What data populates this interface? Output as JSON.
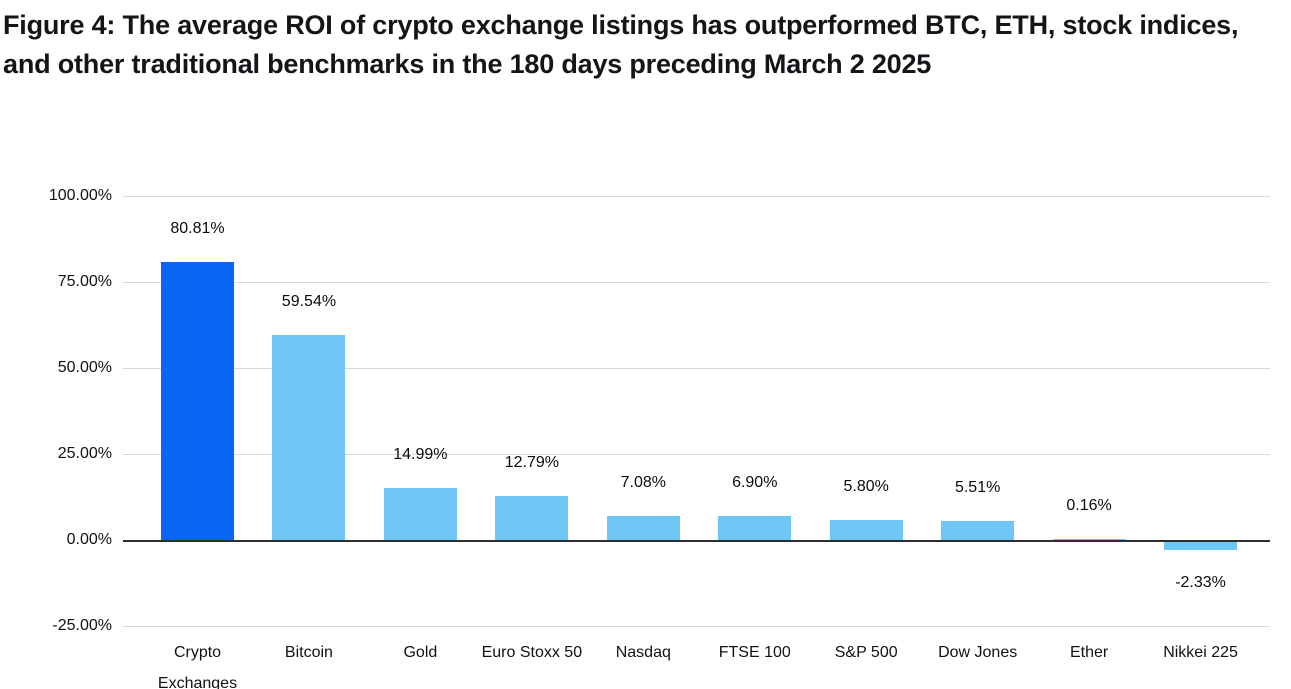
{
  "figure": {
    "title": "Figure 4: The average ROI of crypto exchange listings has outperformed BTC, ETH, stock indices, and other traditional benchmarks in the 180 days preceding March 2 2025"
  },
  "chart_data": {
    "type": "bar",
    "categories": [
      "Crypto Exchanges",
      "Bitcoin",
      "Gold",
      "Euro Stoxx 50",
      "Nasdaq",
      "FTSE 100",
      "S&P 500",
      "Dow Jones",
      "Ether",
      "Nikkei 225"
    ],
    "values": [
      80.81,
      59.54,
      14.99,
      12.79,
      7.08,
      6.9,
      5.8,
      5.51,
      0.16,
      -2.33
    ],
    "data_labels": [
      "80.81%",
      "59.54%",
      "14.99%",
      "12.79%",
      "7.08%",
      "6.90%",
      "5.80%",
      "5.51%",
      "0.16%",
      "-2.33%"
    ],
    "y_tick_labels": [
      "100.00%",
      "75.00%",
      "50.00%",
      "25.00%",
      "0.00%",
      "-25.00%"
    ],
    "y_tick_values": [
      100,
      75,
      50,
      25,
      0,
      -25
    ],
    "ylim": [
      -25,
      100
    ],
    "grid": true,
    "legend_position": "none",
    "xlabel": "",
    "ylabel": "",
    "highlight_index": 0,
    "colors": {
      "highlight_bar": "#0a67f5",
      "default_bar": "#6fc7f7",
      "gridline": "#d9d9d9",
      "zero_line": "#2e2e2e",
      "title_text": "#141419",
      "axis_text": "#111111",
      "background": "#ffffff"
    }
  }
}
